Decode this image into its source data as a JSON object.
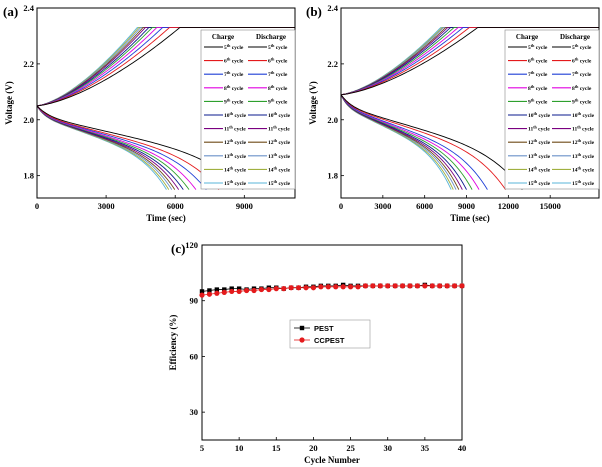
{
  "chart_data": [
    {
      "panel_label": "(a)",
      "type": "line",
      "xlabel": "Time (sec)",
      "ylabel": "Voltage (V)",
      "xlim": [
        0,
        11200
      ],
      "ylim": [
        1.72,
        2.4
      ],
      "xticks": [
        0,
        3000,
        6000,
        9000
      ],
      "yticks": [
        1.8,
        2.0,
        2.2
      ],
      "ytick_labels": [
        "1.8",
        "2.0",
        "2.2"
      ],
      "top_label": "2.4",
      "legend": {
        "placement": "top-right",
        "charge_header": "Charge",
        "discharge_header": "Discharge",
        "cycles": [
          "5th cycle",
          "6th cycle",
          "7th cycle",
          "8th cycle",
          "9th cycle",
          "10th cycle",
          "11th cycle",
          "12th cycle",
          "13th cycle",
          "14th cycle",
          "15th cycle"
        ]
      },
      "colors": [
        "#000000",
        "#e41a1c",
        "#1f3fd6",
        "#e000e0",
        "#2ea02e",
        "#0a1a8c",
        "#7a0080",
        "#6f4a17",
        "#6a90c8",
        "#a0b040",
        "#5ab4d8"
      ],
      "charge_end_times": [
        6200,
        5750,
        5450,
        5200,
        5000,
        4850,
        4700,
        4600,
        4500,
        4420,
        4350
      ],
      "discharge_end_times": [
        8950,
        7900,
        7350,
        6900,
        6600,
        6350,
        6150,
        5980,
        5850,
        5720,
        5620
      ],
      "charge_start_voltage": 2.05,
      "charge_plateau_voltage": 2.33,
      "discharge_start_voltage": 2.05,
      "discharge_end_voltage": 1.75
    },
    {
      "panel_label": "(b)",
      "type": "line",
      "xlabel": "Time (sec)",
      "ylabel": "Voltage (V)",
      "xlim": [
        0,
        18500
      ],
      "ylim": [
        1.72,
        2.4
      ],
      "xticks": [
        0,
        3000,
        6000,
        9000,
        12000,
        15000
      ],
      "yticks": [
        1.8,
        2.0,
        2.2
      ],
      "ytick_labels": [
        "1.8",
        "2.0",
        "2.2"
      ],
      "top_label": "2.4",
      "legend": {
        "placement": "top-right",
        "charge_header": "Charge",
        "discharge_header": "Discharge",
        "cycles": [
          "5th cycle",
          "6th cycle",
          "7th cycle",
          "8th cycle",
          "9th cycle",
          "10th cycle",
          "11th cycle",
          "12th cycle",
          "13th cycle",
          "14th cycle",
          "15th cycle"
        ]
      },
      "colors": [
        "#000000",
        "#e41a1c",
        "#1f3fd6",
        "#e000e0",
        "#2ea02e",
        "#0a1a8c",
        "#7a0080",
        "#6f4a17",
        "#6a90c8",
        "#a0b040",
        "#5ab4d8"
      ],
      "charge_end_times": [
        9800,
        9200,
        8750,
        8400,
        8100,
        7850,
        7650,
        7500,
        7350,
        7250,
        7150
      ],
      "discharge_end_times": [
        13000,
        11800,
        10500,
        9900,
        9400,
        9000,
        8700,
        8450,
        8250,
        8050,
        7900
      ],
      "charge_start_voltage": 2.09,
      "charge_plateau_voltage": 2.33,
      "discharge_start_voltage": 2.09,
      "discharge_end_voltage": 1.75
    },
    {
      "panel_label": "(c)",
      "type": "scatter",
      "xlabel": "Cycle Number",
      "ylabel": "Efficiency (%)",
      "xlim": [
        5,
        40
      ],
      "ylim": [
        15,
        120
      ],
      "xticks": [
        5,
        10,
        15,
        20,
        25,
        30,
        35,
        40
      ],
      "yticks": [
        30,
        60,
        90,
        120
      ],
      "legend_placement": "center",
      "series": [
        {
          "name": "PEST",
          "marker": "square",
          "color": "#000000",
          "x": [
            5,
            6,
            7,
            8,
            9,
            10,
            11,
            12,
            13,
            14,
            15,
            16,
            17,
            18,
            19,
            20,
            21,
            22,
            23,
            24,
            25,
            26,
            27,
            28,
            29,
            30,
            31,
            32,
            33,
            34,
            35,
            36,
            37,
            38,
            39,
            40
          ],
          "values": [
            95,
            95.5,
            96,
            96,
            96.5,
            96.5,
            96,
            96.5,
            96.5,
            97,
            97,
            96.5,
            97,
            97,
            97.5,
            97.5,
            98,
            98,
            98,
            98.5,
            98,
            98,
            98,
            98,
            98,
            98,
            98,
            98,
            98,
            98,
            98.5,
            98,
            98,
            98,
            98,
            98
          ]
        },
        {
          "name": "CCPEST",
          "marker": "circle",
          "color": "#e41a1c",
          "x": [
            5,
            6,
            7,
            8,
            9,
            10,
            11,
            12,
            13,
            14,
            15,
            16,
            17,
            18,
            19,
            20,
            21,
            22,
            23,
            24,
            25,
            26,
            27,
            28,
            29,
            30,
            31,
            32,
            33,
            34,
            35,
            36,
            37,
            38,
            39,
            40
          ],
          "values": [
            93,
            93.5,
            94,
            94.5,
            95,
            95,
            95.5,
            95.5,
            96,
            96,
            96.5,
            96.5,
            97,
            97,
            97,
            97,
            97.5,
            97.5,
            97.5,
            97.5,
            97.5,
            97.5,
            98,
            98,
            98,
            98,
            98,
            98,
            98,
            98,
            98,
            98,
            98,
            98,
            98,
            98
          ]
        }
      ]
    }
  ]
}
